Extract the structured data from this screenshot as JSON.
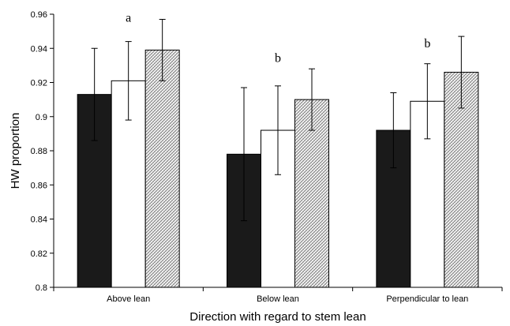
{
  "chart_data": {
    "type": "bar",
    "xlabel": "Direction with regard to stem lean",
    "ylabel": "HW proportion",
    "ylim": [
      0.8,
      0.96
    ],
    "yticks": [
      "0.8",
      "0.82",
      "0.84",
      "0.86",
      "0.88",
      "0.9",
      "0.92",
      "0.94",
      "0.96"
    ],
    "categories": [
      "Above lean",
      "Below lean",
      "Perpendicular to lean"
    ],
    "series": [
      {
        "values": [
          0.913,
          0.878,
          0.892
        ],
        "errors": [
          0.027,
          0.039,
          0.022
        ],
        "fill": "solid-black"
      },
      {
        "values": [
          0.921,
          0.892,
          0.909
        ],
        "errors": [
          0.023,
          0.026,
          0.022
        ],
        "fill": "white"
      },
      {
        "values": [
          0.939,
          0.91,
          0.926
        ],
        "errors": [
          0.018,
          0.018,
          0.021
        ],
        "fill": "crosshatch"
      }
    ],
    "annotations": [
      "a",
      "b",
      "b"
    ],
    "grid": false,
    "legend": "none"
  },
  "colors": {
    "bar_dark": "#1a1a1a",
    "bar_white": "#ffffff",
    "bar_hatch": "#888888",
    "axis": "#000000"
  }
}
